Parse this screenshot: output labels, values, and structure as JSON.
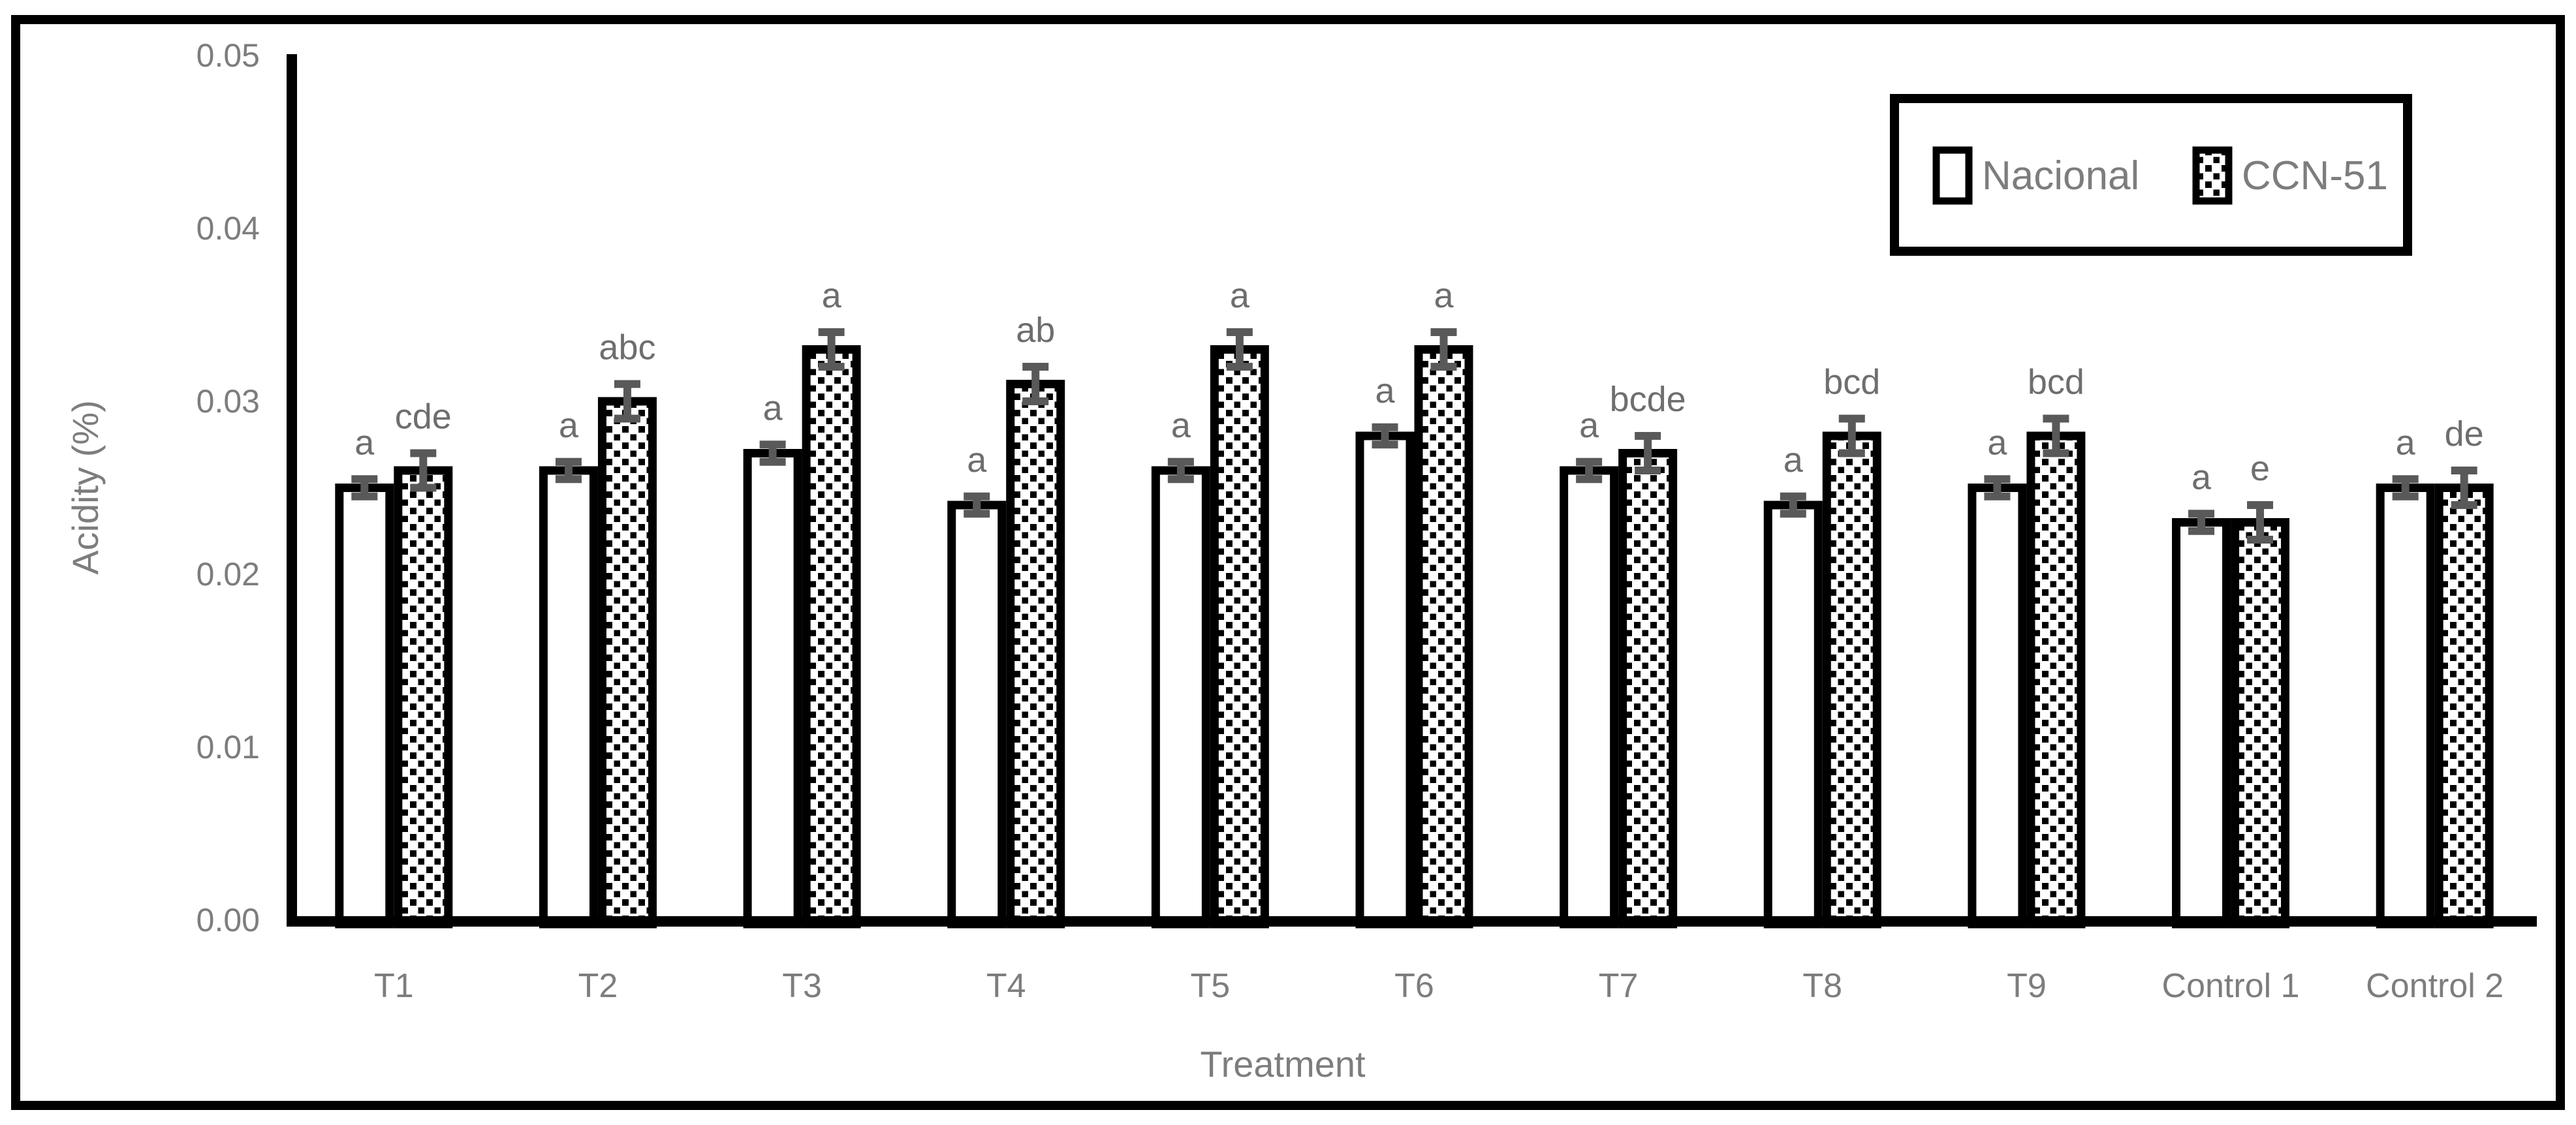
{
  "chart_data": {
    "type": "bar",
    "title": "",
    "xlabel": "Treatment",
    "ylabel": "Acidity (%)",
    "ylim": [
      0,
      0.05
    ],
    "ytick_labels": [
      "0.00",
      "0.01",
      "0.02",
      "0.03",
      "0.04",
      "0.05"
    ],
    "categories": [
      "T1",
      "T2",
      "T3",
      "T4",
      "T5",
      "T6",
      "T7",
      "T8",
      "T9",
      "Control 1",
      "Control 2"
    ],
    "series": [
      {
        "name": "Nacional",
        "fill": "white",
        "values": [
          0.025,
          0.026,
          0.027,
          0.024,
          0.026,
          0.028,
          0.026,
          0.024,
          0.025,
          0.023,
          0.025
        ],
        "errors": [
          0.0005,
          0.0005,
          0.0005,
          0.0005,
          0.0005,
          0.0005,
          0.0005,
          0.0005,
          0.0005,
          0.0005,
          0.0005
        ],
        "sig_letters": [
          "a",
          "a",
          "a",
          "a",
          "a",
          "a",
          "a",
          "a",
          "a",
          "a",
          "a"
        ]
      },
      {
        "name": "CCN-51",
        "fill": "dotted",
        "values": [
          0.026,
          0.03,
          0.033,
          0.031,
          0.033,
          0.033,
          0.027,
          0.028,
          0.028,
          0.023,
          0.025
        ],
        "errors": [
          0.001,
          0.001,
          0.001,
          0.001,
          0.001,
          0.001,
          0.001,
          0.001,
          0.001,
          0.001,
          0.001
        ],
        "sig_letters": [
          "cde",
          "abc",
          "a",
          "ab",
          "a",
          "a",
          "bcde",
          "bcd",
          "bcd",
          "e",
          "de"
        ]
      }
    ],
    "legend_position": "top-right",
    "grid": false
  },
  "colors": {
    "text_gray": "#7d7d7d",
    "letter_gray": "#6e6e6e",
    "error_gray": "#595959",
    "axis_black": "#000000",
    "background": "#ffffff"
  }
}
